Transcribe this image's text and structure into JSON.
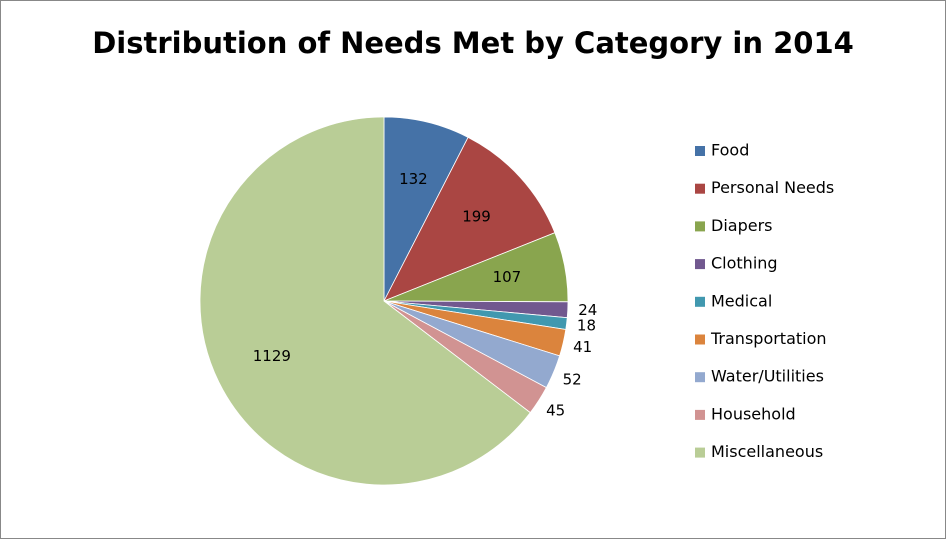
{
  "chart_data": {
    "type": "pie",
    "title": "Distribution of Needs Met by Category in 2014",
    "categories": [
      "Food",
      "Personal Needs",
      "Diapers",
      "Clothing",
      "Medical",
      "Transportation",
      "Water/Utilities",
      "Household",
      "Miscellaneous"
    ],
    "values": [
      132,
      199,
      107,
      24,
      18,
      41,
      52,
      45,
      1129
    ],
    "colors": [
      "#4572a7",
      "#aa4643",
      "#89a54e",
      "#71588f",
      "#4198af",
      "#db843d",
      "#93a9cf",
      "#d19392",
      "#b9cd96"
    ],
    "legend": "right"
  }
}
